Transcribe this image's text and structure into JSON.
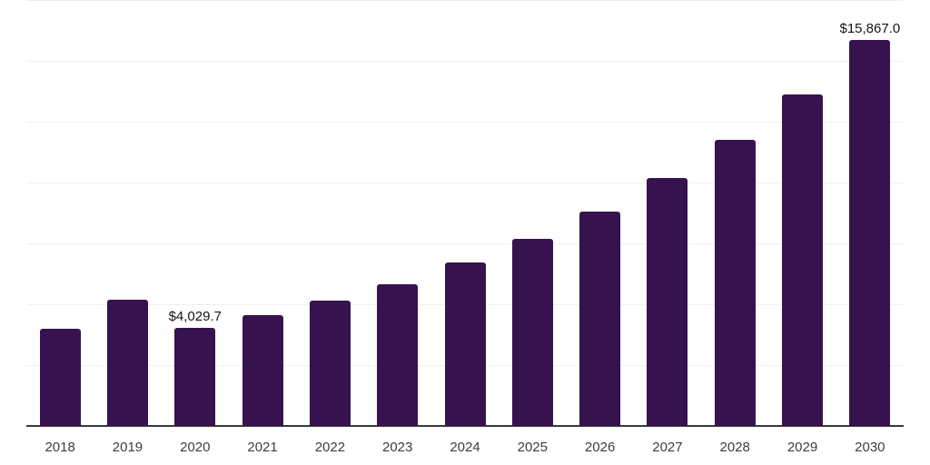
{
  "chart_data": {
    "type": "bar",
    "title": "",
    "categories": [
      "2018",
      "2019",
      "2020",
      "2021",
      "2022",
      "2023",
      "2024",
      "2025",
      "2026",
      "2027",
      "2028",
      "2029",
      "2030"
    ],
    "values": [
      3990,
      5180,
      4029.7,
      4540,
      5160,
      5840,
      6700,
      7700,
      8790,
      10190,
      11740,
      13620,
      15867
    ],
    "data_labels": [
      null,
      null,
      "$4,029.7",
      null,
      null,
      null,
      null,
      null,
      null,
      null,
      null,
      null,
      "$15,867.0"
    ],
    "ylim": [
      0,
      17500
    ],
    "y_gridline_step": 2500,
    "grid": "horizontal-only",
    "legend": "none",
    "y_axis_tick_labels": "none",
    "bar_color": "#36134E",
    "gridline_color": "#efefef",
    "axis_line_color": "#3a3a3a",
    "tick_label_color": "#3d3d3d",
    "data_label_color": "#141414"
  }
}
